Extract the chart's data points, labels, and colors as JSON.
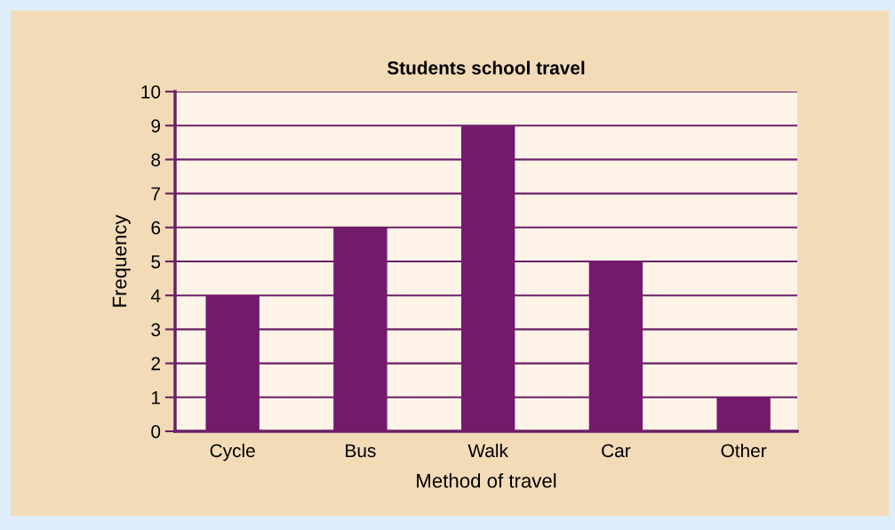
{
  "chart_data": {
    "type": "bar",
    "title": "Students school travel",
    "xlabel": "Method of travel",
    "ylabel": "Frequency",
    "categories": [
      "Cycle",
      "Bus",
      "Walk",
      "Car",
      "Other"
    ],
    "values": [
      4,
      6,
      9,
      5,
      1
    ],
    "color": "#741a6b",
    "ylim": [
      0,
      10
    ],
    "yticks": [
      0,
      1,
      2,
      3,
      4,
      5,
      6,
      7,
      8,
      9,
      10
    ],
    "grid": "y",
    "legend": false
  }
}
